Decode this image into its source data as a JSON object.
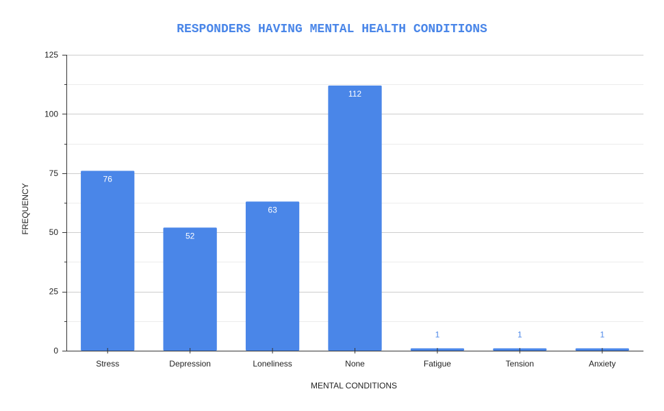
{
  "chart_data": {
    "type": "bar",
    "title": "RESPONDERS HAVING MENTAL HEALTH CONDITIONS",
    "xlabel": "MENTAL CONDITIONS",
    "ylabel": "FREQUENCY",
    "categories": [
      "Stress",
      "Depression",
      "Loneliness",
      "None",
      "Fatigue",
      "Tension",
      "Anxiety"
    ],
    "values": [
      76,
      52,
      63,
      112,
      1,
      1,
      1
    ],
    "data_labels": [
      "76",
      "52",
      "63",
      "112",
      "1",
      "1",
      "1"
    ],
    "ylim": [
      0,
      125
    ],
    "yticks": [
      0,
      25,
      50,
      75,
      100,
      125
    ],
    "ytick_labels": [
      "0",
      "25",
      "50",
      "75",
      "100",
      "125"
    ],
    "grid": true,
    "legend": "none",
    "bar_color": "#4a86e8",
    "title_color": "#4a86e8"
  }
}
